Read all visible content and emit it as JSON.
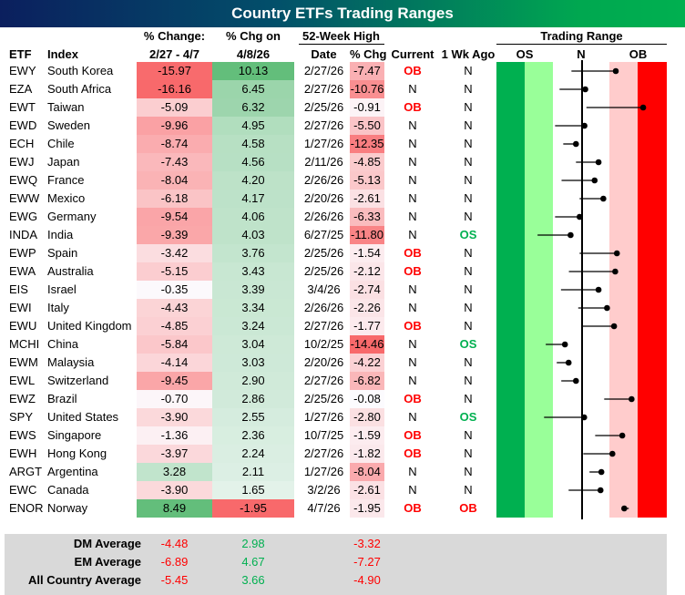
{
  "title": "Country ETFs Trading Ranges",
  "headers": {
    "etf": "ETF",
    "index": "Index",
    "chg_top": "% Change:",
    "chg_bottom": "2/27 - 4/7",
    "day_top": "% Chg on",
    "day_bottom": "4/8/26",
    "high_group": "52-Week High",
    "high_date": "Date",
    "high_chg": "% Chg",
    "current": "Current",
    "week_ago": "1 Wk Ago",
    "range_group": "Trading Range",
    "os": "OS",
    "n": "N",
    "ob": "OB"
  },
  "colors": {
    "red": "#f8696b",
    "green": "#63be7b",
    "ob_text": "#ff0000",
    "os_text": "#00b050",
    "os_dark": "#00b050",
    "os_light": "#99ff99",
    "ob_light": "#ffcccc",
    "ob_dark": "#ff0000"
  },
  "chart_data": {
    "type": "table",
    "range_units": "standard deviations from 50-day moving average",
    "xlim": [
      -3,
      3
    ],
    "rows": [
      {
        "etf": "EWY",
        "index": "South Korea",
        "chg": "-15.97",
        "day": "10.13",
        "date": "2/27/26",
        "from_high": "-7.47",
        "current": "OB",
        "week_ago": "N",
        "pos": 1.21,
        "pos_wk": -0.36
      },
      {
        "etf": "EZA",
        "index": "South Africa",
        "chg": "-16.16",
        "day": "6.45",
        "date": "2/27/26",
        "from_high": "-10.76",
        "current": "N",
        "week_ago": "N",
        "pos": 0.13,
        "pos_wk": -0.78
      },
      {
        "etf": "EWT",
        "index": "Taiwan",
        "chg": "-5.09",
        "day": "6.32",
        "date": "2/25/26",
        "from_high": "-0.91",
        "current": "OB",
        "week_ago": "N",
        "pos": 2.18,
        "pos_wk": 0.17
      },
      {
        "etf": "EWD",
        "index": "Sweden",
        "chg": "-9.96",
        "day": "4.95",
        "date": "2/27/26",
        "from_high": "-5.50",
        "current": "N",
        "week_ago": "N",
        "pos": 0.1,
        "pos_wk": -0.94
      },
      {
        "etf": "ECH",
        "index": "Chile",
        "chg": "-8.74",
        "day": "4.58",
        "date": "1/27/26",
        "from_high": "-12.35",
        "current": "N",
        "week_ago": "N",
        "pos": -0.2,
        "pos_wk": -0.65
      },
      {
        "etf": "EWJ",
        "index": "Japan",
        "chg": "-7.43",
        "day": "4.56",
        "date": "2/11/26",
        "from_high": "-4.85",
        "current": "N",
        "week_ago": "N",
        "pos": 0.6,
        "pos_wk": -0.2
      },
      {
        "etf": "EWQ",
        "index": "France",
        "chg": "-8.04",
        "day": "4.20",
        "date": "2/26/26",
        "from_high": "-5.13",
        "current": "N",
        "week_ago": "N",
        "pos": 0.46,
        "pos_wk": -0.71
      },
      {
        "etf": "EWW",
        "index": "Mexico",
        "chg": "-6.18",
        "day": "4.17",
        "date": "2/20/26",
        "from_high": "-2.61",
        "current": "N",
        "week_ago": "N",
        "pos": 0.77,
        "pos_wk": -0.07
      },
      {
        "etf": "EWG",
        "index": "Germany",
        "chg": "-9.54",
        "day": "4.06",
        "date": "2/26/26",
        "from_high": "-6.33",
        "current": "N",
        "week_ago": "N",
        "pos": -0.07,
        "pos_wk": -0.94
      },
      {
        "etf": "INDA",
        "index": "India",
        "chg": "-9.39",
        "day": "4.03",
        "date": "6/27/25",
        "from_high": "-11.80",
        "current": "N",
        "week_ago": "OS",
        "pos": -0.39,
        "pos_wk": -1.56
      },
      {
        "etf": "EWP",
        "index": "Spain",
        "chg": "-3.42",
        "day": "3.76",
        "date": "2/25/26",
        "from_high": "-1.54",
        "current": "OB",
        "week_ago": "N",
        "pos": 1.25,
        "pos_wk": -0.07
      },
      {
        "etf": "EWA",
        "index": "Australia",
        "chg": "-5.15",
        "day": "3.43",
        "date": "2/25/26",
        "from_high": "-2.12",
        "current": "OB",
        "week_ago": "N",
        "pos": 1.19,
        "pos_wk": -0.45
      },
      {
        "etf": "EIS",
        "index": "Israel",
        "chg": "-0.35",
        "day": "3.39",
        "date": "3/4/26",
        "from_high": "-2.74",
        "current": "N",
        "week_ago": "N",
        "pos": 0.6,
        "pos_wk": -0.73
      },
      {
        "etf": "EWI",
        "index": "Italy",
        "chg": "-4.43",
        "day": "3.34",
        "date": "2/26/26",
        "from_high": "-2.26",
        "current": "N",
        "week_ago": "N",
        "pos": 0.9,
        "pos_wk": -0.12
      },
      {
        "etf": "EWU",
        "index": "United Kingdom",
        "chg": "-4.85",
        "day": "3.24",
        "date": "2/27/26",
        "from_high": "-1.77",
        "current": "OB",
        "week_ago": "N",
        "pos": 1.15,
        "pos_wk": 0.01
      },
      {
        "etf": "MCHI",
        "index": "China",
        "chg": "-5.84",
        "day": "3.04",
        "date": "10/2/25",
        "from_high": "-14.46",
        "current": "N",
        "week_ago": "OS",
        "pos": -0.59,
        "pos_wk": -1.27
      },
      {
        "etf": "EWM",
        "index": "Malaysia",
        "chg": "-4.14",
        "day": "3.03",
        "date": "2/20/26",
        "from_high": "-4.22",
        "current": "N",
        "week_ago": "N",
        "pos": -0.46,
        "pos_wk": -0.88
      },
      {
        "etf": "EWL",
        "index": "Switzerland",
        "chg": "-9.45",
        "day": "2.90",
        "date": "2/27/26",
        "from_high": "-6.82",
        "current": "N",
        "week_ago": "N",
        "pos": -0.2,
        "pos_wk": -0.72
      },
      {
        "etf": "EWZ",
        "index": "Brazil",
        "chg": "-0.70",
        "day": "2.86",
        "date": "2/25/26",
        "from_high": "-0.08",
        "current": "OB",
        "week_ago": "N",
        "pos": 1.77,
        "pos_wk": 0.8
      },
      {
        "etf": "SPY",
        "index": "United States",
        "chg": "-3.90",
        "day": "2.55",
        "date": "1/27/26",
        "from_high": "-2.80",
        "current": "N",
        "week_ago": "OS",
        "pos": 0.09,
        "pos_wk": -1.33
      },
      {
        "etf": "EWS",
        "index": "Singapore",
        "chg": "-1.36",
        "day": "2.36",
        "date": "10/7/25",
        "from_high": "-1.59",
        "current": "OB",
        "week_ago": "N",
        "pos": 1.44,
        "pos_wk": 0.48
      },
      {
        "etf": "EWH",
        "index": "Hong Kong",
        "chg": "-3.97",
        "day": "2.24",
        "date": "2/27/26",
        "from_high": "-1.82",
        "current": "OB",
        "week_ago": "N",
        "pos": 1.09,
        "pos_wk": 0.06
      },
      {
        "etf": "ARGT",
        "index": "Argentina",
        "chg": "3.28",
        "day": "2.11",
        "date": "1/27/26",
        "from_high": "-8.04",
        "current": "N",
        "week_ago": "N",
        "pos": 0.7,
        "pos_wk": 0.28
      },
      {
        "etf": "EWC",
        "index": "Canada",
        "chg": "-3.90",
        "day": "1.65",
        "date": "3/2/26",
        "from_high": "-2.61",
        "current": "N",
        "week_ago": "N",
        "pos": 0.67,
        "pos_wk": -0.46
      },
      {
        "etf": "ENOR",
        "index": "Norway",
        "chg": "8.49",
        "day": "-1.95",
        "date": "4/7/26",
        "from_high": "-1.95",
        "current": "OB",
        "week_ago": "OB",
        "pos": 1.51,
        "pos_wk": 1.67
      }
    ]
  },
  "averages": [
    {
      "label": "DM Average",
      "chg": "-4.48",
      "day": "2.98",
      "from_high": "-3.32"
    },
    {
      "label": "EM Average",
      "chg": "-6.89",
      "day": "4.67",
      "from_high": "-7.27"
    },
    {
      "label": "All Country Average",
      "chg": "-5.45",
      "day": "3.66",
      "from_high": "-4.90"
    }
  ]
}
